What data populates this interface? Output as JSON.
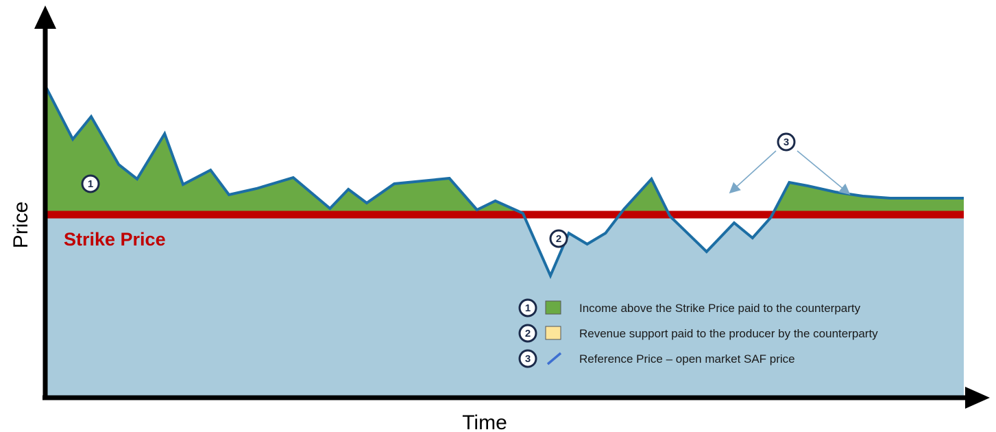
{
  "axes": {
    "y_label": "Price",
    "x_label": "Time"
  },
  "strike_price": {
    "label": "Strike Price",
    "value": 0
  },
  "markers": [
    "1",
    "2",
    "3"
  ],
  "legend": [
    {
      "marker": "1",
      "text": "Income above the Strike Price paid to the counterparty"
    },
    {
      "marker": "2",
      "text": "Revenue support paid to the producer by the counterparty"
    },
    {
      "marker": "3",
      "text": "Reference Price – open market SAF price"
    }
  ],
  "colors": {
    "background_fill": "#a9cbdc",
    "income_fill": "#6aaa44",
    "support_fill": "#fde59a",
    "reference_line": "#1c6ea4",
    "strike_line": "#c00000",
    "axis": "#000000",
    "marker_border": "#1b2a4a",
    "pointer_arrow": "#7aa7c7"
  },
  "reference_price": {
    "t": [
      0,
      3,
      5,
      8,
      10,
      13,
      15,
      18,
      20,
      23,
      27,
      31,
      33,
      35,
      38,
      44,
      47,
      49,
      52,
      55,
      57,
      59,
      61,
      63,
      66,
      68,
      72,
      75,
      77,
      79,
      81,
      83,
      86,
      89,
      92,
      100
    ],
    "price": [
      188,
      110,
      143,
      73,
      52,
      118,
      44,
      65,
      29,
      38,
      54,
      9,
      37,
      17,
      45,
      53,
      7,
      20,
      2,
      -89,
      -27,
      -43,
      -27,
      8,
      52,
      -2,
      -54,
      -12,
      -34,
      -4,
      47,
      42,
      33,
      27,
      24,
      24
    ]
  }
}
